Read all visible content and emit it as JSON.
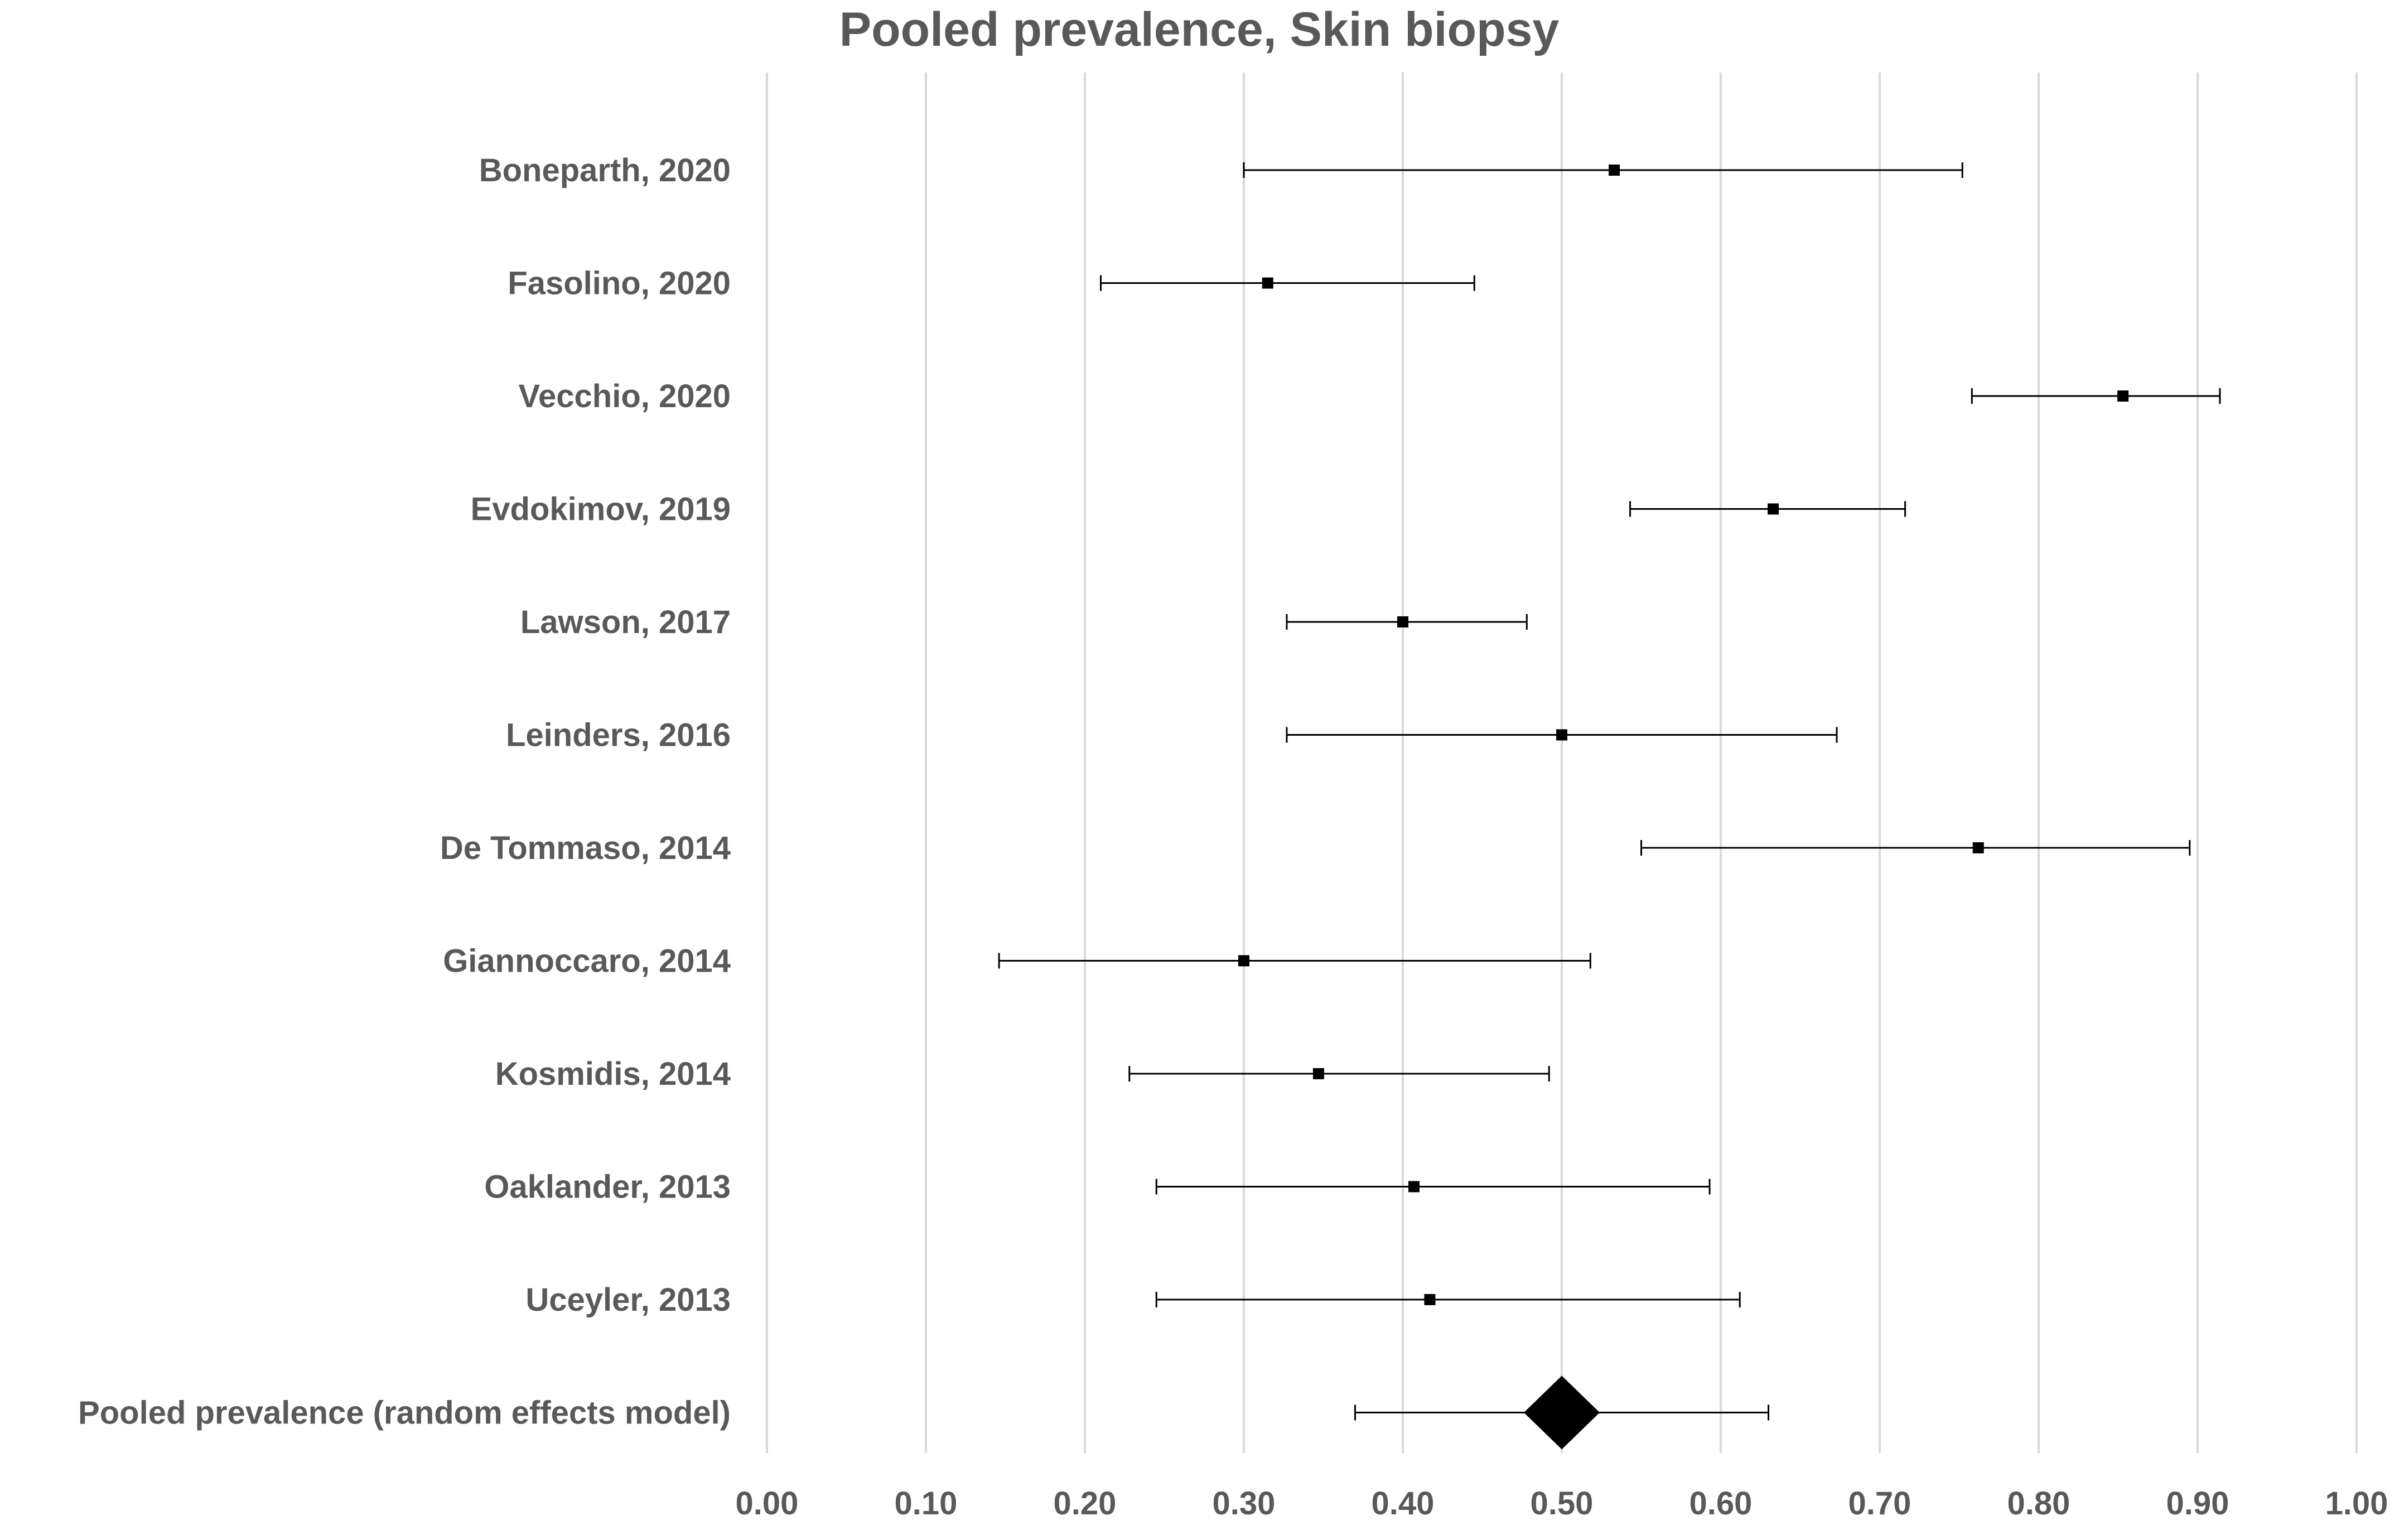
{
  "chart_data": {
    "type": "forest",
    "title": "Pooled prevalence, Skin biopsy",
    "xlim": [
      0.0,
      1.0
    ],
    "x_ticks": [
      "0.00",
      "0.10",
      "0.20",
      "0.30",
      "0.40",
      "0.50",
      "0.60",
      "0.70",
      "0.80",
      "0.90",
      "1.00"
    ],
    "grid": "vertical",
    "studies": [
      {
        "label": "Boneparth, 2020",
        "estimate": 0.533,
        "lower": 0.3,
        "upper": 0.752
      },
      {
        "label": "Fasolino, 2020",
        "estimate": 0.315,
        "lower": 0.21,
        "upper": 0.445
      },
      {
        "label": "Vecchio, 2020",
        "estimate": 0.853,
        "lower": 0.758,
        "upper": 0.914
      },
      {
        "label": "Evdokimov, 2019",
        "estimate": 0.633,
        "lower": 0.543,
        "upper": 0.716
      },
      {
        "label": "Lawson, 2017",
        "estimate": 0.4,
        "lower": 0.327,
        "upper": 0.478
      },
      {
        "label": "Leinders, 2016",
        "estimate": 0.5,
        "lower": 0.327,
        "upper": 0.673
      },
      {
        "label": "De Tommaso, 2014",
        "estimate": 0.762,
        "lower": 0.55,
        "upper": 0.895
      },
      {
        "label": "Giannoccaro, 2014",
        "estimate": 0.3,
        "lower": 0.146,
        "upper": 0.518
      },
      {
        "label": "Kosmidis, 2014",
        "estimate": 0.347,
        "lower": 0.228,
        "upper": 0.492
      },
      {
        "label": "Oaklander, 2013",
        "estimate": 0.407,
        "lower": 0.245,
        "upper": 0.593
      },
      {
        "label": "Uceyler, 2013",
        "estimate": 0.417,
        "lower": 0.245,
        "upper": 0.612
      }
    ],
    "pooled": {
      "label": "Pooled prevalence (random effects model)",
      "estimate": 0.5,
      "lower": 0.37,
      "upper": 0.63
    },
    "colors": {
      "text": "#595959",
      "grid": "#d9d9d9",
      "marker": "#000000",
      "line": "#000000"
    }
  }
}
